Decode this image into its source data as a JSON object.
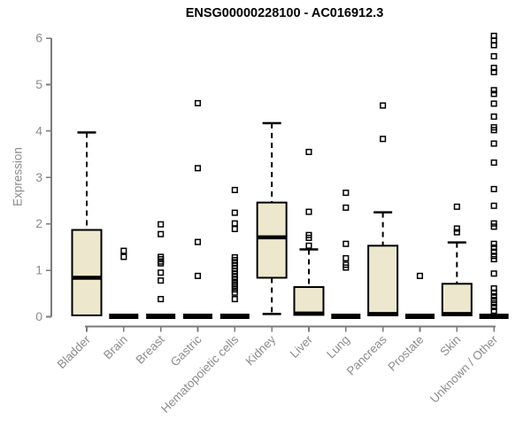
{
  "title": "ENSG00000228100 - AC016912.3",
  "y_axis_label": "Expression",
  "colors": {
    "background": "#ffffff",
    "box_fill": "#EDE8CD",
    "box_stroke": "#000000",
    "median": "#000000",
    "whisker": "#000000",
    "outlier": "#000000",
    "axis": "#7a7a7a",
    "tick_text": "#8c8c8c",
    "title_text": "#000000"
  },
  "chart_data": {
    "type": "boxplot",
    "title": "ENSG00000228100 - AC016912.3",
    "xlabel": "",
    "ylabel": "Expression",
    "ylim": [
      0,
      6.3
    ],
    "y_ticks": [
      0,
      1,
      2,
      3,
      4,
      5,
      6
    ],
    "grid": false,
    "legend": "none",
    "categories": [
      "Bladder",
      "Brain",
      "Breast",
      "Gastric",
      "Hematopoietic cells",
      "Kidney",
      "Liver",
      "Lung",
      "Pancreas",
      "Prostate",
      "Skin",
      "Unknown / Other"
    ],
    "series": [
      {
        "name": "Bladder",
        "q1": 0.03,
        "median": 0.84,
        "q3": 1.87,
        "whisker_low": 0.03,
        "whisker_high": 3.97,
        "outliers": []
      },
      {
        "name": "Brain",
        "q1": 0,
        "median": 0,
        "q3": 0,
        "whisker_low": 0,
        "whisker_high": 0,
        "outliers": [
          1.42,
          1.29
        ]
      },
      {
        "name": "Breast",
        "q1": 0,
        "median": 0,
        "q3": 0,
        "whisker_low": 0,
        "whisker_high": 0,
        "outliers": [
          1.99,
          1.78,
          1.29,
          1.24,
          1.19,
          1.15,
          0.95,
          0.78,
          0.38
        ]
      },
      {
        "name": "Gastric",
        "q1": 0,
        "median": 0,
        "q3": 0,
        "whisker_low": 0,
        "whisker_high": 0,
        "outliers": [
          4.6,
          3.2,
          1.61,
          0.88
        ]
      },
      {
        "name": "Hematopoietic cells",
        "q1": 0,
        "median": 0,
        "q3": 0,
        "whisker_low": 0,
        "whisker_high": 0,
        "outliers": [
          2.73,
          2.24,
          2.01,
          1.89,
          1.28,
          1.22,
          1.16,
          1.1,
          1.04,
          0.98,
          0.92,
          0.86,
          0.8,
          0.73,
          0.66,
          0.59,
          0.52,
          0.38
        ]
      },
      {
        "name": "Kidney",
        "q1": 0.84,
        "median": 1.71,
        "q3": 2.46,
        "whisker_low": 0.06,
        "whisker_high": 4.17,
        "outliers": []
      },
      {
        "name": "Liver",
        "q1": 0.04,
        "median": 0.04,
        "q3": 0.64,
        "whisker_low": 0.04,
        "whisker_high": 1.45,
        "outliers": [
          3.55,
          2.26,
          1.76,
          1.7,
          1.53
        ]
      },
      {
        "name": "Lung",
        "q1": 0,
        "median": 0,
        "q3": 0,
        "whisker_low": 0,
        "whisker_high": 0,
        "outliers": [
          2.67,
          2.35,
          1.57,
          1.26,
          1.12,
          1.06
        ]
      },
      {
        "name": "Pancreas",
        "q1": 0.03,
        "median": 0.03,
        "q3": 1.53,
        "whisker_low": 0.03,
        "whisker_high": 2.25,
        "outliers": [
          4.55,
          3.83
        ]
      },
      {
        "name": "Prostate",
        "q1": 0,
        "median": 0,
        "q3": 0,
        "whisker_low": 0,
        "whisker_high": 0,
        "outliers": [
          0.88
        ]
      },
      {
        "name": "Skin",
        "q1": 0.03,
        "median": 0.03,
        "q3": 0.71,
        "whisker_low": 0.03,
        "whisker_high": 1.6,
        "outliers": [
          2.37,
          1.9,
          1.82
        ]
      },
      {
        "name": "Unknown / Other",
        "q1": 0,
        "median": 0,
        "q3": 0,
        "whisker_low": 0,
        "whisker_high": 0,
        "outliers": [
          6.05,
          5.95,
          5.85,
          5.61,
          5.36,
          5.27,
          4.88,
          4.8,
          4.59,
          4.31,
          4.08,
          4.02,
          3.73,
          3.32,
          2.75,
          2.39,
          2.01,
          1.94,
          1.57,
          1.49,
          1.4,
          1.31,
          1.24,
          0.93,
          0.61,
          0.52,
          0.44,
          0.36,
          0.29,
          0.21,
          0.13
        ]
      }
    ]
  }
}
